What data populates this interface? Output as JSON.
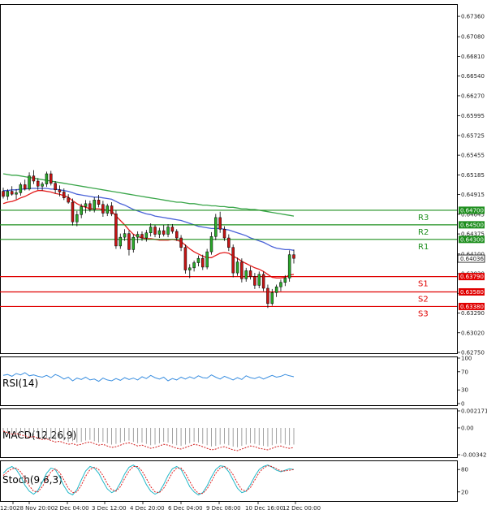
{
  "colors": {
    "bull": "#2aa82a",
    "bear": "#c41414",
    "ma_red": "#e41d1d",
    "ma_blue": "#4a62d8",
    "ma_green": "#3aa64a",
    "resistance": "#1f8f1f",
    "support": "#e00000",
    "rsi": "#3b8fe0",
    "macd": "#8a8a8a",
    "macd_signal": "#d32020",
    "stoch_k": "#22b8c8",
    "stoch_d": "#e02020",
    "current_price": "#000000"
  },
  "price_axis": {
    "min": 0.6275,
    "max": 0.6745,
    "ticks": [
      "0.67360",
      "0.67080",
      "0.66810",
      "0.66540",
      "0.66270",
      "0.65995",
      "0.65725",
      "0.65455",
      "0.65185",
      "0.64915",
      "0.64645",
      "0.64375",
      "0.64100",
      "0.63830",
      "0.63560",
      "0.63290",
      "0.63020",
      "0.62750"
    ]
  },
  "levels": [
    {
      "name": "R3",
      "value": 0.647,
      "label": "0.64700",
      "type": "resistance"
    },
    {
      "name": "R2",
      "value": 0.645,
      "label": "0.64500",
      "type": "resistance"
    },
    {
      "name": "R1",
      "value": 0.643,
      "label": "0.64300",
      "type": "resistance"
    },
    {
      "name": "S1",
      "value": 0.6379,
      "label": "0.63790",
      "type": "support"
    },
    {
      "name": "S2",
      "value": 0.6358,
      "label": "0.63580",
      "type": "support"
    },
    {
      "name": "S3",
      "value": 0.6338,
      "label": "0.63380",
      "type": "support"
    }
  ],
  "current_price": {
    "value": 0.64036,
    "label": "0.64036"
  },
  "time_axis": [
    "12:00",
    "28 Nov 20:00",
    "2 Dec 04:00",
    "3 Dec 12:00",
    "4 Dec 20:00",
    "6 Dec 04:00",
    "9 Dec 08:00",
    "10 Dec 16:00",
    "12 Dec 00:00"
  ],
  "indicators": {
    "rsi": {
      "title": "RSI(14)",
      "ticks": [
        "100",
        "70",
        "30",
        "0"
      ],
      "values": [
        62,
        64,
        60,
        66,
        63,
        68,
        61,
        63,
        60,
        58,
        62,
        57,
        64,
        60,
        54,
        58,
        50,
        56,
        53,
        58,
        52,
        54,
        49,
        56,
        52,
        50,
        55,
        51,
        57,
        53,
        56,
        52,
        59,
        55,
        62,
        57,
        54,
        58,
        50,
        55,
        52,
        58,
        54,
        59,
        55,
        61,
        57,
        56,
        63,
        58,
        54,
        60,
        56,
        52,
        57,
        53,
        61,
        57,
        55,
        59,
        54,
        58,
        62,
        58,
        60,
        64,
        61,
        59
      ]
    },
    "macd": {
      "title": "MACD(12,26,9)",
      "ticks": [
        "0.002171",
        "0.00",
        "-0.003423"
      ],
      "values": [
        -0.0004,
        -0.0006,
        -0.0008,
        -0.0007,
        -0.0009,
        -0.001,
        -0.0012,
        -0.0011,
        -0.0013,
        -0.0015,
        -0.0014,
        -0.0016,
        -0.0018,
        -0.0017,
        -0.0019,
        -0.0021,
        -0.002,
        -0.0022,
        -0.0021,
        -0.0019,
        -0.0018,
        -0.002,
        -0.0022,
        -0.0021,
        -0.0023,
        -0.0025,
        -0.0024,
        -0.0022,
        -0.002,
        -0.0019,
        -0.0021,
        -0.0023,
        -0.0022,
        -0.0024,
        -0.0026,
        -0.0025,
        -0.0023,
        -0.0021,
        -0.0022,
        -0.0024,
        -0.0026,
        -0.0027,
        -0.0025,
        -0.0023,
        -0.0021,
        -0.0022,
        -0.0024,
        -0.0026,
        -0.0028,
        -0.0027,
        -0.0025,
        -0.0024,
        -0.0026,
        -0.0028,
        -0.0029,
        -0.0027,
        -0.0025,
        -0.0023,
        -0.0024,
        -0.0026,
        -0.0027,
        -0.0028,
        -0.0026,
        -0.0024,
        -0.0023,
        -0.0025,
        -0.0026,
        -0.0025
      ]
    },
    "stoch": {
      "title": "Stoch(9,6,3)",
      "ticks": [
        "80",
        "20"
      ],
      "k": [
        70,
        82,
        88,
        80,
        62,
        38,
        22,
        14,
        24,
        46,
        70,
        84,
        80,
        60,
        36,
        18,
        12,
        26,
        52,
        76,
        88,
        84,
        70,
        48,
        28,
        18,
        24,
        44,
        68,
        86,
        92,
        84,
        64,
        40,
        22,
        14,
        20,
        40,
        64,
        82,
        88,
        80,
        58,
        34,
        20,
        12,
        18,
        36,
        60,
        80,
        90,
        88,
        74,
        52,
        30,
        18,
        22,
        40,
        62,
        80,
        88,
        92,
        86,
        78,
        74,
        78,
        82,
        80
      ],
      "d": [
        64,
        74,
        82,
        84,
        74,
        56,
        36,
        22,
        20,
        34,
        54,
        74,
        82,
        72,
        52,
        30,
        18,
        20,
        38,
        62,
        80,
        86,
        80,
        64,
        42,
        26,
        22,
        34,
        56,
        76,
        88,
        88,
        76,
        56,
        34,
        20,
        18,
        30,
        50,
        72,
        84,
        84,
        70,
        48,
        28,
        16,
        16,
        28,
        48,
        70,
        84,
        88,
        82,
        66,
        44,
        26,
        22,
        32,
        52,
        72,
        84,
        90,
        88,
        82,
        76,
        76,
        78,
        80
      ]
    }
  },
  "candles": [
    [
      0.6496,
      0.6501,
      0.6486,
      0.6489
    ],
    [
      0.6489,
      0.6499,
      0.6484,
      0.6496
    ],
    [
      0.6496,
      0.6503,
      0.649,
      0.6492
    ],
    [
      0.6492,
      0.6499,
      0.6485,
      0.6494
    ],
    [
      0.6494,
      0.6508,
      0.649,
      0.6505
    ],
    [
      0.6505,
      0.6512,
      0.6497,
      0.6499
    ],
    [
      0.6499,
      0.6522,
      0.6497,
      0.6517
    ],
    [
      0.6517,
      0.6525,
      0.6506,
      0.651
    ],
    [
      0.651,
      0.6514,
      0.6498,
      0.6503
    ],
    [
      0.6503,
      0.6509,
      0.6497,
      0.6506
    ],
    [
      0.6506,
      0.6523,
      0.6502,
      0.652
    ],
    [
      0.652,
      0.6524,
      0.6504,
      0.6507
    ],
    [
      0.6507,
      0.651,
      0.6493,
      0.6498
    ],
    [
      0.6498,
      0.6504,
      0.6489,
      0.6495
    ],
    [
      0.6495,
      0.65,
      0.6484,
      0.6487
    ],
    [
      0.6487,
      0.6492,
      0.6479,
      0.6481
    ],
    [
      0.6481,
      0.6486,
      0.6449,
      0.6454
    ],
    [
      0.6454,
      0.6469,
      0.6448,
      0.6464
    ],
    [
      0.6464,
      0.6479,
      0.6459,
      0.6475
    ],
    [
      0.6475,
      0.6484,
      0.6466,
      0.6479
    ],
    [
      0.6479,
      0.6483,
      0.6468,
      0.6471
    ],
    [
      0.6471,
      0.6488,
      0.6467,
      0.6484
    ],
    [
      0.6484,
      0.6491,
      0.6474,
      0.6478
    ],
    [
      0.6478,
      0.6483,
      0.6461,
      0.6466
    ],
    [
      0.6466,
      0.6479,
      0.6462,
      0.6476
    ],
    [
      0.6476,
      0.6481,
      0.6462,
      0.6465
    ],
    [
      0.6465,
      0.647,
      0.6417,
      0.6421
    ],
    [
      0.6421,
      0.6438,
      0.6417,
      0.6433
    ],
    [
      0.6433,
      0.6444,
      0.6428,
      0.6438
    ],
    [
      0.6438,
      0.6442,
      0.6408,
      0.6416
    ],
    [
      0.6416,
      0.6437,
      0.6412,
      0.6433
    ],
    [
      0.6433,
      0.6441,
      0.6425,
      0.6437
    ],
    [
      0.6437,
      0.6441,
      0.6428,
      0.6432
    ],
    [
      0.6432,
      0.6443,
      0.6427,
      0.6439
    ],
    [
      0.6439,
      0.6452,
      0.6434,
      0.6447
    ],
    [
      0.6447,
      0.645,
      0.6433,
      0.6437
    ],
    [
      0.6437,
      0.6446,
      0.6432,
      0.6442
    ],
    [
      0.6442,
      0.645,
      0.6434,
      0.6437
    ],
    [
      0.6437,
      0.6451,
      0.6433,
      0.6447
    ],
    [
      0.6447,
      0.6451,
      0.6438,
      0.6441
    ],
    [
      0.6441,
      0.6444,
      0.6428,
      0.6432
    ],
    [
      0.6432,
      0.6436,
      0.6414,
      0.6419
    ],
    [
      0.6419,
      0.6423,
      0.6383,
      0.6388
    ],
    [
      0.6388,
      0.6396,
      0.6377,
      0.6391
    ],
    [
      0.6391,
      0.6401,
      0.6386,
      0.6398
    ],
    [
      0.6398,
      0.6408,
      0.6393,
      0.6404
    ],
    [
      0.6404,
      0.6409,
      0.6388,
      0.6392
    ],
    [
      0.6392,
      0.6417,
      0.6389,
      0.6413
    ],
    [
      0.6413,
      0.644,
      0.6409,
      0.6434
    ],
    [
      0.6434,
      0.6465,
      0.6429,
      0.646
    ],
    [
      0.646,
      0.6468,
      0.6439,
      0.6444
    ],
    [
      0.6444,
      0.6448,
      0.6428,
      0.6432
    ],
    [
      0.6432,
      0.6437,
      0.6414,
      0.6419
    ],
    [
      0.6419,
      0.6423,
      0.6378,
      0.6384
    ],
    [
      0.6384,
      0.6405,
      0.638,
      0.6399
    ],
    [
      0.6399,
      0.6404,
      0.6371,
      0.6376
    ],
    [
      0.6376,
      0.6391,
      0.6372,
      0.6387
    ],
    [
      0.6387,
      0.6393,
      0.6375,
      0.6379
    ],
    [
      0.6379,
      0.6384,
      0.6362,
      0.6367
    ],
    [
      0.6367,
      0.6386,
      0.6363,
      0.6382
    ],
    [
      0.6382,
      0.6386,
      0.6359,
      0.6363
    ],
    [
      0.6363,
      0.6368,
      0.6336,
      0.6342
    ],
    [
      0.6342,
      0.6362,
      0.6339,
      0.6357
    ],
    [
      0.6357,
      0.6368,
      0.6351,
      0.6365
    ],
    [
      0.6365,
      0.6375,
      0.6359,
      0.6371
    ],
    [
      0.6371,
      0.6381,
      0.6366,
      0.6377
    ],
    [
      0.6377,
      0.6415,
      0.6372,
      0.6409
    ],
    [
      0.6409,
      0.6416,
      0.6397,
      0.6404
    ]
  ],
  "moving_averages": {
    "red": [
      0.6479,
      0.6481,
      0.6482,
      0.6484,
      0.6487,
      0.6489,
      0.6492,
      0.6495,
      0.6497,
      0.6497,
      0.6496,
      0.6495,
      0.6493,
      0.6492,
      0.649,
      0.6488,
      0.6483,
      0.6479,
      0.6476,
      0.6474,
      0.6472,
      0.6472,
      0.6472,
      0.6471,
      0.647,
      0.6469,
      0.6462,
      0.6456,
      0.645,
      0.6443,
      0.6437,
      0.6434,
      0.6432,
      0.6431,
      0.6431,
      0.643,
      0.6429,
      0.6429,
      0.6429,
      0.643,
      0.6429,
      0.6427,
      0.6422,
      0.6417,
      0.6413,
      0.641,
      0.6407,
      0.6405,
      0.6405,
      0.6408,
      0.6411,
      0.6412,
      0.6411,
      0.6407,
      0.6404,
      0.64,
      0.6397,
      0.6394,
      0.6391,
      0.6389,
      0.6386,
      0.6382,
      0.6378,
      0.6377,
      0.6377,
      0.6378,
      0.6381,
      0.6382
    ],
    "blue": [
      0.6497,
      0.6497,
      0.6498,
      0.6498,
      0.6499,
      0.6499,
      0.65,
      0.65,
      0.65,
      0.65,
      0.65,
      0.6499,
      0.6499,
      0.6498,
      0.6497,
      0.6496,
      0.6494,
      0.6492,
      0.6491,
      0.649,
      0.6489,
      0.6488,
      0.6488,
      0.6487,
      0.6486,
      0.6485,
      0.6482,
      0.6479,
      0.6477,
      0.6474,
      0.6471,
      0.6469,
      0.6467,
      0.6465,
      0.6464,
      0.6462,
      0.6461,
      0.646,
      0.6459,
      0.6458,
      0.6457,
      0.6456,
      0.6454,
      0.6452,
      0.645,
      0.6448,
      0.6447,
      0.6446,
      0.6445,
      0.6445,
      0.6445,
      0.6444,
      0.6443,
      0.6441,
      0.6439,
      0.6437,
      0.6435,
      0.6432,
      0.643,
      0.6428,
      0.6426,
      0.6423,
      0.642,
      0.6418,
      0.6417,
      0.6416,
      0.6416,
      0.6415
    ],
    "green": [
      0.652,
      0.6519,
      0.6518,
      0.6518,
      0.6517,
      0.6516,
      0.6515,
      0.6514,
      0.6513,
      0.6512,
      0.6511,
      0.651,
      0.6509,
      0.6508,
      0.6507,
      0.6506,
      0.6505,
      0.6504,
      0.6503,
      0.6502,
      0.6501,
      0.65,
      0.6499,
      0.6498,
      0.6497,
      0.6496,
      0.6495,
      0.6494,
      0.6493,
      0.6492,
      0.6491,
      0.649,
      0.6489,
      0.6488,
      0.6487,
      0.6486,
      0.6485,
      0.6484,
      0.6483,
      0.6482,
      0.6481,
      0.6481,
      0.648,
      0.6479,
      0.6479,
      0.6478,
      0.6477,
      0.6477,
      0.6476,
      0.6476,
      0.6475,
      0.6475,
      0.6474,
      0.6474,
      0.6473,
      0.6472,
      0.6472,
      0.6471,
      0.6471,
      0.647,
      0.6469,
      0.6468,
      0.6467,
      0.6466,
      0.6465,
      0.6464,
      0.6463,
      0.6462
    ]
  }
}
